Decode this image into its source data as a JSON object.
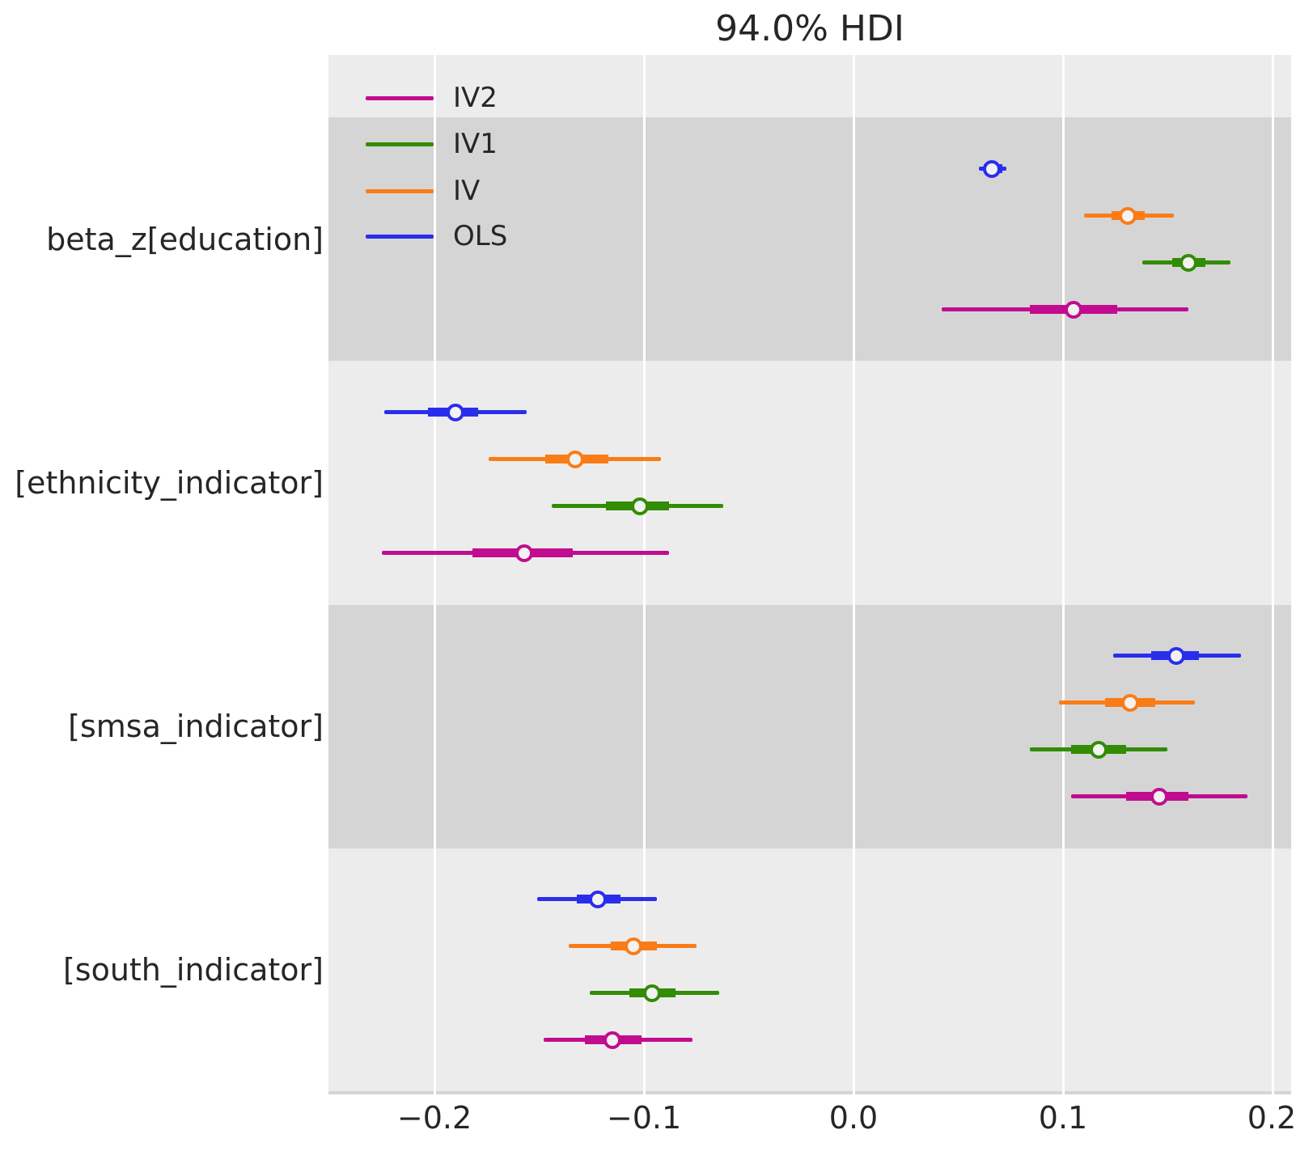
{
  "title": "94.0% HDI",
  "colors": {
    "ols": "#2a2eec",
    "iv": "#fa7c17",
    "iv1": "#328c06",
    "iv2": "#c10c90",
    "plot_background": "#ececec",
    "band_dark": "#d5d5d5",
    "gridline": "#ffffff",
    "text": "#262626",
    "marker_fill": "#f2f2f2"
  },
  "legend": {
    "items": [
      {
        "label": "IV2",
        "color": "#c10c90"
      },
      {
        "label": "IV1",
        "color": "#328c06"
      },
      {
        "label": "IV",
        "color": "#fa7c17"
      },
      {
        "label": "OLS",
        "color": "#2a2eec"
      }
    ]
  },
  "x_axis": {
    "tick_values": [
      -0.2,
      -0.1,
      0.0,
      0.1,
      0.2
    ],
    "tick_labels": [
      "−0.2",
      "−0.1",
      "0.0",
      "0.1",
      "0.2"
    ]
  },
  "chart_data": {
    "type": "forest_plot",
    "title": "94.0% HDI",
    "hdi_probability": 0.94,
    "xlim": [
      -0.2506,
      0.2089
    ],
    "grid": true,
    "legend_position": "upper left",
    "background_bands": "alternating per parameter",
    "parameters": [
      "beta_z[education]",
      "[ethnicity_indicator]",
      "[smsa_indicator]",
      "[south_indicator]"
    ],
    "row_order_top_to_bottom": [
      "OLS",
      "IV",
      "IV1",
      "IV2"
    ],
    "series": [
      {
        "name": "OLS",
        "color": "#2a2eec",
        "values": [
          {
            "parameter": "beta_z[education]",
            "hdi_low": 0.06,
            "hdi_high": 0.073,
            "quartile_low": 0.062,
            "quartile_high": 0.071,
            "median": 0.066
          },
          {
            "parameter": "[ethnicity_indicator]",
            "hdi_low": -0.224,
            "hdi_high": -0.156,
            "quartile_low": -0.203,
            "quartile_high": -0.179,
            "median": -0.19
          },
          {
            "parameter": "[smsa_indicator]",
            "hdi_low": 0.124,
            "hdi_high": 0.185,
            "quartile_low": 0.142,
            "quartile_high": 0.165,
            "median": 0.154
          },
          {
            "parameter": "[south_indicator]",
            "hdi_low": -0.151,
            "hdi_high": -0.094,
            "quartile_low": -0.132,
            "quartile_high": -0.111,
            "median": -0.122
          }
        ]
      },
      {
        "name": "IV",
        "color": "#fa7c17",
        "values": [
          {
            "parameter": "beta_z[education]",
            "hdi_low": 0.11,
            "hdi_high": 0.153,
            "quartile_low": 0.123,
            "quartile_high": 0.139,
            "median": 0.131
          },
          {
            "parameter": "[ethnicity_indicator]",
            "hdi_low": -0.174,
            "hdi_high": -0.092,
            "quartile_low": -0.147,
            "quartile_high": -0.117,
            "median": -0.133
          },
          {
            "parameter": "[smsa_indicator]",
            "hdi_low": 0.098,
            "hdi_high": 0.163,
            "quartile_low": 0.12,
            "quartile_high": 0.144,
            "median": 0.132
          },
          {
            "parameter": "[south_indicator]",
            "hdi_low": -0.136,
            "hdi_high": -0.075,
            "quartile_low": -0.116,
            "quartile_high": -0.094,
            "median": -0.105
          }
        ]
      },
      {
        "name": "IV1",
        "color": "#328c06",
        "values": [
          {
            "parameter": "beta_z[education]",
            "hdi_low": 0.138,
            "hdi_high": 0.18,
            "quartile_low": 0.152,
            "quartile_high": 0.168,
            "median": 0.16
          },
          {
            "parameter": "[ethnicity_indicator]",
            "hdi_low": -0.144,
            "hdi_high": -0.062,
            "quartile_low": -0.118,
            "quartile_high": -0.088,
            "median": -0.102
          },
          {
            "parameter": "[smsa_indicator]",
            "hdi_low": 0.084,
            "hdi_high": 0.15,
            "quartile_low": 0.104,
            "quartile_high": 0.13,
            "median": 0.117
          },
          {
            "parameter": "[south_indicator]",
            "hdi_low": -0.126,
            "hdi_high": -0.064,
            "quartile_low": -0.107,
            "quartile_high": -0.085,
            "median": -0.096
          }
        ]
      },
      {
        "name": "IV2",
        "color": "#c10c90",
        "values": [
          {
            "parameter": "beta_z[education]",
            "hdi_low": 0.042,
            "hdi_high": 0.16,
            "quartile_low": 0.084,
            "quartile_high": 0.126,
            "median": 0.105
          },
          {
            "parameter": "[ethnicity_indicator]",
            "hdi_low": -0.225,
            "hdi_high": -0.088,
            "quartile_low": -0.182,
            "quartile_high": -0.134,
            "median": -0.157
          },
          {
            "parameter": "[smsa_indicator]",
            "hdi_low": 0.104,
            "hdi_high": 0.188,
            "quartile_low": 0.13,
            "quartile_high": 0.16,
            "median": 0.146
          },
          {
            "parameter": "[south_indicator]",
            "hdi_low": -0.148,
            "hdi_high": -0.077,
            "quartile_low": -0.128,
            "quartile_high": -0.101,
            "median": -0.115
          }
        ]
      }
    ]
  }
}
